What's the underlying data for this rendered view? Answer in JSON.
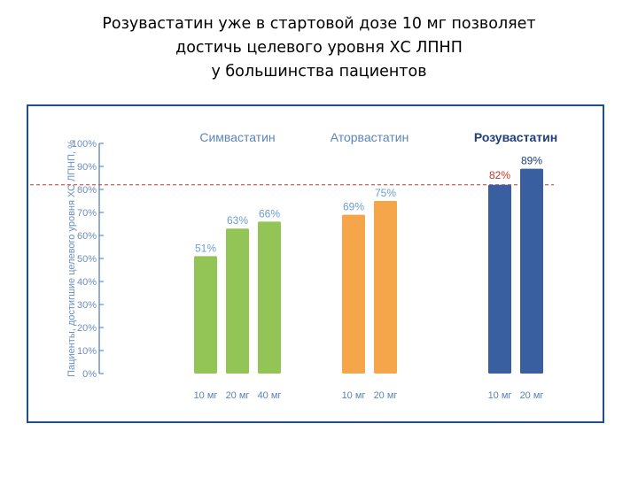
{
  "slide": {
    "title_lines": [
      "Розувастатин уже в стартовой дозе 10 мг позволяет",
      "достичь целевого уровня ХС ЛПНП",
      "у большинства пациентов"
    ]
  },
  "chart_data": {
    "type": "bar",
    "ylabel": "Пациенты, достигшие целевого уровня ХС ЛПНП, %",
    "ylim": [
      0,
      100
    ],
    "y_ticks": [
      "0%",
      "10%",
      "20%",
      "30%",
      "40%",
      "50%",
      "60%",
      "70%",
      "80%",
      "90%",
      "100%"
    ],
    "grid": false,
    "reference_line": {
      "value": 82,
      "label": "82%",
      "color": "#c0392b"
    },
    "groups": [
      {
        "name": "Симвастатин",
        "color": "#92c456",
        "bars": [
          {
            "category": "10 мг",
            "value": 51,
            "label": "51%"
          },
          {
            "category": "20 мг",
            "value": 63,
            "label": "63%"
          },
          {
            "category": "40 мг",
            "value": 66,
            "label": "66%"
          }
        ]
      },
      {
        "name": "Аторвастатин",
        "color": "#f5a54a",
        "bars": [
          {
            "category": "10 мг",
            "value": 69,
            "label": "69%"
          },
          {
            "category": "20 мг",
            "value": 75,
            "label": "75%"
          }
        ]
      },
      {
        "name": "Розувастатин",
        "color": "#3a5fa0",
        "bars": [
          {
            "category": "10 мг",
            "value": 82,
            "label": ""
          },
          {
            "category": "20 мг",
            "value": 89,
            "label": "89%"
          }
        ]
      }
    ],
    "colors": {
      "axis": "#4a78b4",
      "tick_label": "#6b8fbf",
      "group_title": "#5b84bc",
      "group_title_highlight": "#1f3f7a",
      "bar_label": "#6a9fcf",
      "category_label": "#5b84bc",
      "frame": "#1f4f86"
    }
  }
}
